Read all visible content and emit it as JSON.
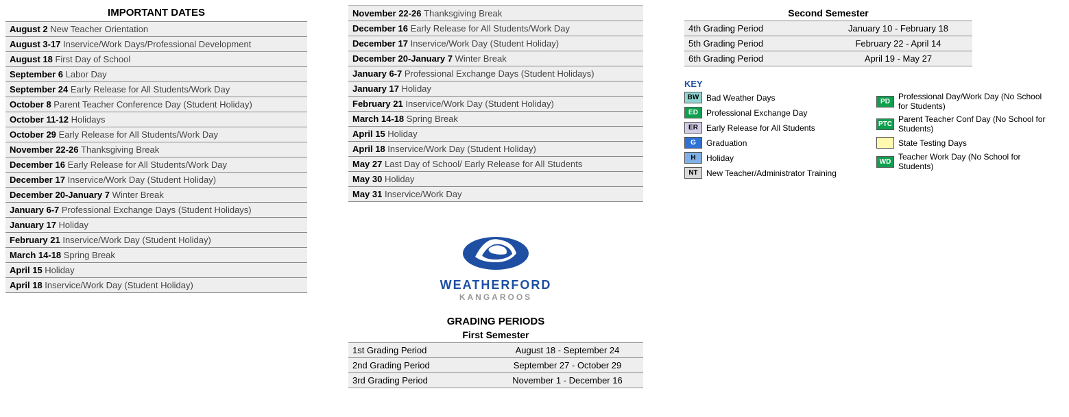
{
  "colors": {
    "row_bg": "#eeeeee",
    "border": "#888888",
    "text_main": "#000000",
    "text_desc": "#444444",
    "brand_blue": "#1e4fa3",
    "brand_gray": "#999999"
  },
  "important_dates": {
    "title": "IMPORTANT DATES",
    "col1": [
      {
        "date": "August 2",
        "desc": "New Teacher Orientation"
      },
      {
        "date": "August 3-17",
        "desc": "Inservice/Work Days/Professional Development"
      },
      {
        "date": "August 18",
        "desc": "First Day of School"
      },
      {
        "date": "September 6",
        "desc": " Labor Day"
      },
      {
        "date": "September 24",
        "desc": "Early Release for All Students/Work Day"
      },
      {
        "date": "October 8",
        "desc": "Parent Teacher Conference Day (Student Holiday)"
      },
      {
        "date": "October 11-12",
        "desc": "Holidays"
      },
      {
        "date": "October 29",
        "desc": "Early Release for All Students/Work Day"
      },
      {
        "date": "November 22-26",
        "desc": "Thanksgiving Break"
      },
      {
        "date": "December 16",
        "desc": "Early Release for All Students/Work Day"
      },
      {
        "date": "December 17",
        "desc": "Inservice/Work Day (Student Holiday)"
      },
      {
        "date": "December 20-January 7",
        "desc": "Winter Break"
      },
      {
        "date": "January 6-7",
        "desc": "Professional Exchange Days (Student Holidays)"
      },
      {
        "date": "January 17",
        "desc": "Holiday"
      },
      {
        "date": "February 21",
        "desc": "Inservice/Work Day (Student Holiday)"
      },
      {
        "date": "March 14-18",
        "desc": "Spring Break"
      },
      {
        "date": "April 15",
        "desc": "Holiday"
      },
      {
        "date": "April 18",
        "desc": "Inservice/Work Day (Student Holiday)"
      }
    ],
    "col2": [
      {
        "date": "November 22-26",
        "desc": "Thanksgiving Break"
      },
      {
        "date": "December 16",
        "desc": "Early Release for All Students/Work Day"
      },
      {
        "date": "December 17",
        "desc": "Inservice/Work Day (Student Holiday)"
      },
      {
        "date": "December 20-January 7",
        "desc": "Winter Break"
      },
      {
        "date": "January 6-7",
        "desc": "Professional Exchange Days (Student Holidays)"
      },
      {
        "date": "January 17",
        "desc": "Holiday"
      },
      {
        "date": "February 21",
        "desc": "Inservice/Work Day (Student Holiday)"
      },
      {
        "date": "March 14-18",
        "desc": "Spring Break"
      },
      {
        "date": "April 15",
        "desc": "Holiday"
      },
      {
        "date": "April 18",
        "desc": "Inservice/Work Day (Student Holiday)"
      },
      {
        "date": "May 27",
        "desc": "Last Day of School/ Early Release for All Students"
      },
      {
        "date": "May 30",
        "desc": "Holiday"
      },
      {
        "date": "May 31",
        "desc": "Inservice/Work Day"
      }
    ]
  },
  "logo": {
    "title": "WEATHERFORD",
    "subtitle": "KANGAROOS"
  },
  "grading_periods": {
    "title": "GRADING PERIODS",
    "first_semester": {
      "title": "First Semester",
      "rows": [
        {
          "label": "1st Grading Period",
          "range": "August 18 - September 24"
        },
        {
          "label": "2nd Grading Period",
          "range": "September 27 - October 29"
        },
        {
          "label": "3rd Grading Period",
          "range": "November 1 - December 16"
        }
      ]
    },
    "second_semester": {
      "title": "Second Semester",
      "rows": [
        {
          "label": "4th Grading Period",
          "range": "January 10 - February 18"
        },
        {
          "label": "5th Grading Period",
          "range": "February 22 - April 14"
        },
        {
          "label": "6th Grading Period",
          "range": "April 19 - May 27"
        }
      ]
    }
  },
  "key": {
    "title": "KEY",
    "left": [
      {
        "code": "BW",
        "bg": "#8fd4d1",
        "fg": "#000000",
        "label": "Bad Weather Days"
      },
      {
        "code": "ED",
        "bg": "#0fa04f",
        "fg": "#ffffff",
        "label": "Professional Exchange Day"
      },
      {
        "code": "ER",
        "bg": "#d3cce6",
        "fg": "#000000",
        "label": "Early Release for All Students"
      },
      {
        "code": "G",
        "bg": "#2f72d6",
        "fg": "#ffffff",
        "label": "Graduation"
      },
      {
        "code": "H",
        "bg": "#7fb0e6",
        "fg": "#000000",
        "label": "Holiday"
      },
      {
        "code": "NT",
        "bg": "#d9d9d9",
        "fg": "#000000",
        "label": "New Teacher/Administrator Training"
      }
    ],
    "right": [
      {
        "code": "PD",
        "bg": "#0fa04f",
        "fg": "#ffffff",
        "label": "Professional Day/Work Day (No School for Students)"
      },
      {
        "code": "PTC",
        "bg": "#0fa04f",
        "fg": "#ffffff",
        "label": "Parent Teacher Conf Day (No School for Students)"
      },
      {
        "code": "",
        "bg": "#fff9b0",
        "fg": "#000000",
        "label": "State Testing Days"
      },
      {
        "code": "WD",
        "bg": "#0fa04f",
        "fg": "#ffffff",
        "label": "Teacher Work Day (No School for Students)"
      }
    ]
  }
}
